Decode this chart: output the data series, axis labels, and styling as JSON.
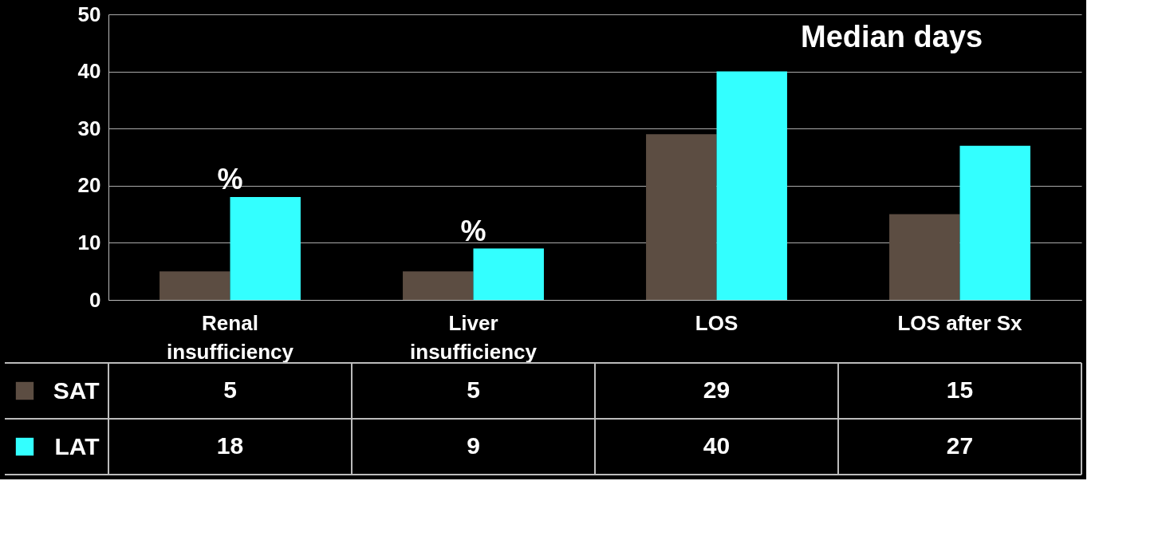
{
  "chart_data": {
    "type": "bar",
    "categories": [
      "Renal insufficiency",
      "Liver insufficiency",
      "LOS",
      "LOS after Sx"
    ],
    "series": [
      {
        "name": "SAT",
        "color": "#5c4d42",
        "values": [
          5,
          5,
          29,
          15
        ]
      },
      {
        "name": "LAT",
        "color": "#33ffff",
        "values": [
          18,
          9,
          40,
          27
        ]
      }
    ],
    "ylim": [
      0,
      50
    ],
    "yticks": [
      0,
      10,
      20,
      30,
      40,
      50
    ],
    "grid": "y",
    "legend": "bottom",
    "data_labels": true,
    "annotations": [
      {
        "text": "%",
        "x": "Renal insufficiency",
        "y": 18
      },
      {
        "text": "%",
        "x": "Liver insufficiency",
        "y": 9
      },
      "Median days"
    ]
  }
}
